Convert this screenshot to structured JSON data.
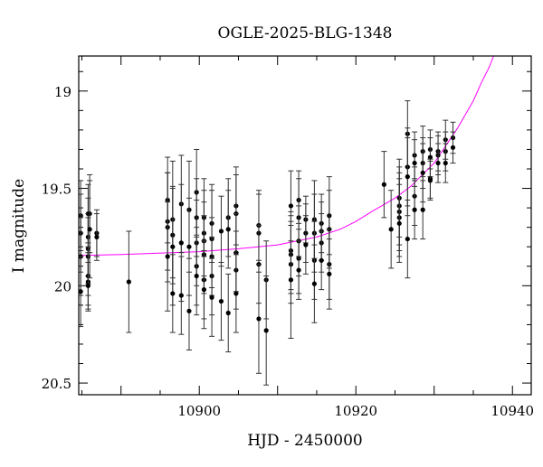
{
  "chart_data": {
    "type": "scatter",
    "title": "OGLE-2025-BLG-1348",
    "xlabel": "HJD - 2450000",
    "ylabel": "I magnitude",
    "xlim": [
      10884.6,
      10942.4
    ],
    "ylim": [
      20.56,
      18.82
    ],
    "y_inverted": true,
    "x_ticks": [
      10900,
      10920,
      10940
    ],
    "y_ticks": [
      19,
      19.5,
      20,
      20.5
    ],
    "x_tick_labels": [
      "10900",
      "10920",
      "10940"
    ],
    "y_tick_labels": [
      "19",
      "19.5",
      "20",
      "20.5"
    ],
    "grid": false,
    "colors": {
      "points": "#000000",
      "errorbars": "#333333",
      "model": "#ff00ff"
    },
    "points_format": [
      "HJD-2450000",
      "I mag",
      "error"
    ],
    "points": [
      [
        10884.85,
        19.64,
        0.18
      ],
      [
        10884.85,
        19.73,
        0.2
      ],
      [
        10884.85,
        19.85,
        0.2
      ],
      [
        10884.85,
        20.03,
        0.18
      ],
      [
        10885.8,
        19.63,
        0.15
      ],
      [
        10885.8,
        19.75,
        0.2
      ],
      [
        10885.8,
        19.81,
        0.18
      ],
      [
        10885.8,
        19.85,
        0.2
      ],
      [
        10885.8,
        19.95,
        0.15
      ],
      [
        10885.8,
        19.98,
        0.15
      ],
      [
        10885.8,
        20.0,
        0.12
      ],
      [
        10886.0,
        19.63,
        0.2
      ],
      [
        10886.0,
        19.71,
        0.25
      ],
      [
        10886.9,
        19.73,
        0.12
      ],
      [
        10886.9,
        19.75,
        0.12
      ],
      [
        10891.0,
        19.98,
        0.26
      ],
      [
        10895.95,
        19.56,
        0.22
      ],
      [
        10895.95,
        19.67,
        0.25
      ],
      [
        10895.95,
        19.7,
        0.28
      ],
      [
        10895.95,
        19.85,
        0.28
      ],
      [
        10896.6,
        19.66,
        0.3
      ],
      [
        10896.6,
        19.74,
        0.25
      ],
      [
        10896.6,
        19.8,
        0.3
      ],
      [
        10896.6,
        20.04,
        0.2
      ],
      [
        10897.7,
        19.58,
        0.25
      ],
      [
        10897.7,
        19.78,
        0.3
      ],
      [
        10897.7,
        20.05,
        0.2
      ],
      [
        10898.7,
        19.61,
        0.25
      ],
      [
        10898.7,
        19.8,
        0.25
      ],
      [
        10898.7,
        20.13,
        0.2
      ],
      [
        10899.65,
        19.52,
        0.22
      ],
      [
        10899.65,
        19.65,
        0.2
      ],
      [
        10899.65,
        19.78,
        0.22
      ],
      [
        10899.65,
        19.9,
        0.2
      ],
      [
        10899.65,
        19.95,
        0.2
      ],
      [
        10900.6,
        19.65,
        0.2
      ],
      [
        10900.6,
        19.73,
        0.22
      ],
      [
        10900.6,
        19.77,
        0.2
      ],
      [
        10900.6,
        19.84,
        0.2
      ],
      [
        10900.6,
        19.97,
        0.2
      ],
      [
        10900.6,
        20.02,
        0.2
      ],
      [
        10901.6,
        19.68,
        0.2
      ],
      [
        10901.6,
        19.76,
        0.25
      ],
      [
        10901.6,
        19.85,
        0.2
      ],
      [
        10901.6,
        19.95,
        0.2
      ],
      [
        10901.6,
        20.06,
        0.2
      ],
      [
        10902.8,
        19.72,
        0.18
      ],
      [
        10902.8,
        20.08,
        0.2
      ],
      [
        10903.7,
        19.65,
        0.2
      ],
      [
        10903.7,
        19.71,
        0.2
      ],
      [
        10903.7,
        20.14,
        0.2
      ],
      [
        10904.7,
        19.59,
        0.2
      ],
      [
        10904.7,
        19.63,
        0.2
      ],
      [
        10904.7,
        19.83,
        0.2
      ],
      [
        10904.7,
        19.92,
        0.2
      ],
      [
        10904.7,
        20.04,
        0.2
      ],
      [
        10907.6,
        19.69,
        0.18
      ],
      [
        10907.6,
        19.73,
        0.2
      ],
      [
        10907.6,
        19.89,
        0.2
      ],
      [
        10907.6,
        20.17,
        0.28
      ],
      [
        10908.55,
        19.97,
        0.2
      ],
      [
        10908.55,
        20.23,
        0.28
      ],
      [
        10911.7,
        19.59,
        0.18
      ],
      [
        10911.7,
        19.82,
        0.2
      ],
      [
        10911.7,
        19.84,
        0.2
      ],
      [
        10911.7,
        19.89,
        0.2
      ],
      [
        10911.7,
        19.97,
        0.3
      ],
      [
        10912.7,
        19.56,
        0.15
      ],
      [
        10912.7,
        19.65,
        0.2
      ],
      [
        10912.7,
        19.77,
        0.18
      ],
      [
        10912.7,
        19.86,
        0.18
      ],
      [
        10912.7,
        19.92,
        0.15
      ],
      [
        10913.6,
        19.66,
        0.12
      ],
      [
        10913.6,
        19.73,
        0.15
      ],
      [
        10913.6,
        19.79,
        0.15
      ],
      [
        10914.7,
        19.66,
        0.2
      ],
      [
        10914.7,
        19.73,
        0.2
      ],
      [
        10914.7,
        19.87,
        0.2
      ],
      [
        10914.7,
        19.99,
        0.2
      ],
      [
        10915.6,
        19.68,
        0.15
      ],
      [
        10915.6,
        19.72,
        0.15
      ],
      [
        10915.6,
        19.78,
        0.15
      ],
      [
        10915.6,
        19.87,
        0.15
      ],
      [
        10916.6,
        19.64,
        0.2
      ],
      [
        10916.6,
        19.71,
        0.2
      ],
      [
        10916.6,
        19.89,
        0.18
      ],
      [
        10916.6,
        19.94,
        0.18
      ],
      [
        10923.6,
        19.48,
        0.17
      ],
      [
        10924.5,
        19.71,
        0.2
      ],
      [
        10925.55,
        19.55,
        0.2
      ],
      [
        10925.55,
        19.59,
        0.2
      ],
      [
        10925.55,
        19.62,
        0.2
      ],
      [
        10925.55,
        19.65,
        0.2
      ],
      [
        10925.55,
        19.68,
        0.2
      ],
      [
        10926.6,
        19.22,
        0.17
      ],
      [
        10926.6,
        19.39,
        0.2
      ],
      [
        10926.6,
        19.44,
        0.2
      ],
      [
        10926.6,
        19.76,
        0.2
      ],
      [
        10927.5,
        19.33,
        0.12
      ],
      [
        10927.5,
        19.37,
        0.12
      ],
      [
        10927.5,
        19.54,
        0.15
      ],
      [
        10927.5,
        19.61,
        0.15
      ],
      [
        10928.55,
        19.31,
        0.13
      ],
      [
        10928.55,
        19.37,
        0.13
      ],
      [
        10928.55,
        19.42,
        0.15
      ],
      [
        10928.55,
        19.61,
        0.15
      ],
      [
        10929.5,
        19.3,
        0.1
      ],
      [
        10929.5,
        19.34,
        0.1
      ],
      [
        10929.5,
        19.45,
        0.1
      ],
      [
        10929.5,
        19.46,
        0.1
      ],
      [
        10930.5,
        19.31,
        0.1
      ],
      [
        10930.5,
        19.33,
        0.1
      ],
      [
        10930.5,
        19.37,
        0.1
      ],
      [
        10931.45,
        19.25,
        0.1
      ],
      [
        10931.45,
        19.31,
        0.1
      ],
      [
        10931.45,
        19.37,
        0.1
      ],
      [
        10932.4,
        19.24,
        0.08
      ],
      [
        10932.4,
        19.29,
        0.08
      ]
    ],
    "model_curve": [
      [
        10884.6,
        19.845
      ],
      [
        10890,
        19.84
      ],
      [
        10900,
        19.825
      ],
      [
        10905,
        19.81
      ],
      [
        10910,
        19.79
      ],
      [
        10915,
        19.75
      ],
      [
        10918,
        19.71
      ],
      [
        10920,
        19.67
      ],
      [
        10922,
        19.62
      ],
      [
        10925,
        19.55
      ],
      [
        10927,
        19.49
      ],
      [
        10928,
        19.45
      ],
      [
        10930,
        19.37
      ],
      [
        10931,
        19.31
      ],
      [
        10932,
        19.25
      ],
      [
        10933,
        19.19
      ],
      [
        10934,
        19.12
      ],
      [
        10935,
        19.05
      ],
      [
        10936,
        18.96
      ],
      [
        10937,
        18.88
      ],
      [
        10937.6,
        18.82
      ]
    ]
  }
}
